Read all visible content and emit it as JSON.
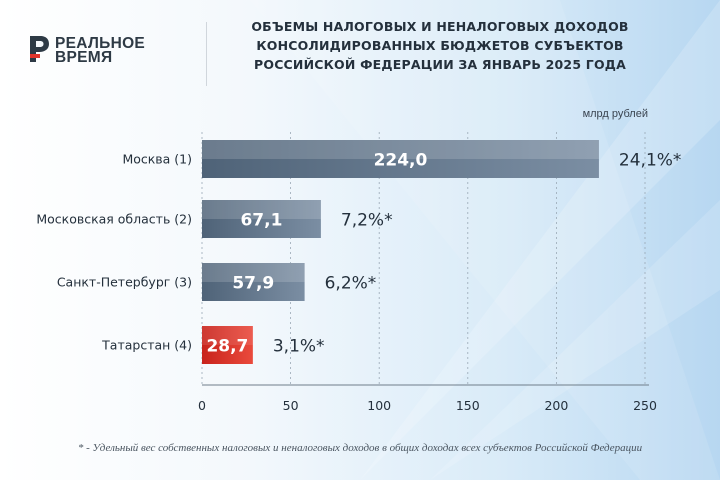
{
  "brand": {
    "line1": "РЕАЛЬНОЕ",
    "line2": "ВРЕМЯ",
    "logo_letter": "Р"
  },
  "title": "ОБЪЕМЫ НАЛОГОВЫХ И НЕНАЛОГОВЫХ ДОХОДОВ КОНСОЛИДИРОВАННЫХ БЮДЖЕТОВ СУБЪЕКТОВ РОССИЙСКОЙ ФЕДЕРАЦИИ ЗА ЯНВАРЬ 2025 ГОДА",
  "title_lines": [
    "ОБЪЕМЫ НАЛОГОВЫХ И НЕНАЛОГОВЫХ ДОХОДОВ",
    "КОНСОЛИДИРОВАННЫХ БЮДЖЕТОВ СУБЪЕКТОВ",
    "РОССИЙСКОЙ ФЕДЕРАЦИИ ЗА ЯНВАРЬ 2025 ГОДА"
  ],
  "unit": "млрд рублей",
  "footnote": "* - Удельный вес собственных налоговых и неналоговых доходов в общих доходах всех субъектов Российской Федерации",
  "colors": {
    "bar": "#5c7086",
    "bar_highlight": "#e0352b",
    "text": "#24303c",
    "logo": "#e0352b"
  },
  "chart_data": {
    "type": "bar",
    "orientation": "horizontal",
    "categories": [
      "Москва (1)",
      "Московская область (2)",
      "Санкт-Петербург (3)",
      "Татарстан (4)"
    ],
    "values": [
      224.0,
      67.1,
      57.9,
      28.7
    ],
    "value_labels": [
      "224,0",
      "67,1",
      "57,9",
      "28,7"
    ],
    "share_labels": [
      "24,1%*",
      "7,2%*",
      "6,2%*",
      "3,1%*"
    ],
    "highlight_index": 3,
    "xlim": [
      0,
      250
    ],
    "xticks": [
      0,
      50,
      100,
      150,
      200,
      250
    ],
    "xtick_labels": [
      "0",
      "50",
      "100",
      "150",
      "200",
      "250"
    ],
    "ylabel": "",
    "xlabel": "",
    "grid": true
  }
}
